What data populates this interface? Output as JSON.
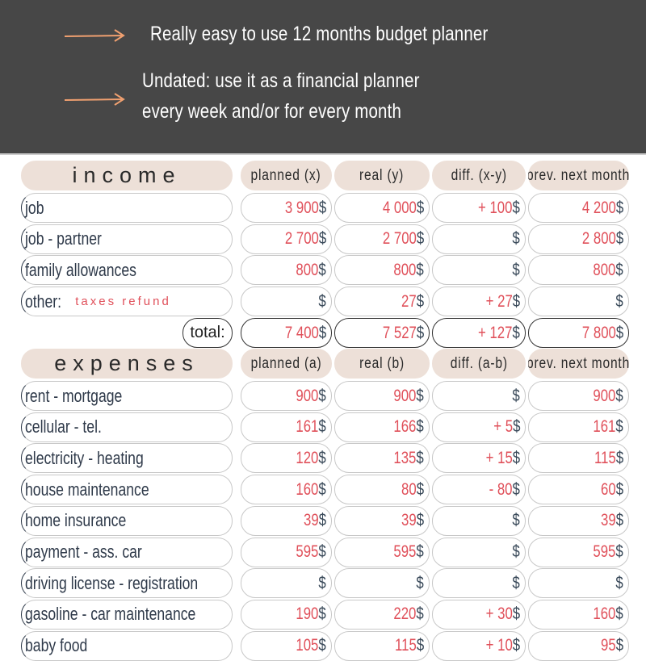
{
  "banner": {
    "line1": "Really easy to use 12 months budget planner",
    "line2a": "Undated: use it as a financial planner",
    "line2b": "every week and/or for every month",
    "arrow_color": "#f0a070",
    "bg_color": "#474747"
  },
  "income": {
    "header": [
      "income",
      "planned (x)",
      "real (y)",
      "diff. (x-y)",
      "prev. next month"
    ],
    "rows": [
      {
        "label": "job",
        "values": [
          "3 900",
          "4 000",
          "+ 100",
          "4 200"
        ]
      },
      {
        "label": "job - partner",
        "values": [
          "2 700",
          "2 700",
          "",
          "2 800"
        ]
      },
      {
        "label": "family allowances",
        "values": [
          "800",
          "800",
          "",
          "800"
        ]
      },
      {
        "label": "other:",
        "note": "taxes refund",
        "values": [
          "",
          "27",
          "+ 27",
          ""
        ]
      }
    ],
    "total": {
      "label": "total:",
      "values": [
        "7 400",
        "7 527",
        "+ 127",
        "7 800"
      ]
    }
  },
  "expenses": {
    "header": [
      "expenses",
      "planned (a)",
      "real (b)",
      "diff. (a-b)",
      "prev. next month"
    ],
    "rows": [
      {
        "label": "rent - mortgage",
        "values": [
          "900",
          "900",
          "",
          "900"
        ]
      },
      {
        "label": "cellular - tel.",
        "values": [
          "161",
          "166",
          "+ 5",
          "161"
        ]
      },
      {
        "label": "electricity - heating",
        "values": [
          "120",
          "135",
          "+ 15",
          "115"
        ]
      },
      {
        "label": "house maintenance",
        "values": [
          "160",
          "80",
          "- 80",
          "60"
        ]
      },
      {
        "label": "home insurance",
        "values": [
          "39",
          "39",
          "",
          "39"
        ]
      },
      {
        "label": "payment - ass. car",
        "values": [
          "595",
          "595",
          "",
          "595"
        ]
      },
      {
        "label": "driving license - registration",
        "values": [
          "",
          "",
          "",
          ""
        ]
      },
      {
        "label": "gasoline - car maintenance",
        "values": [
          "190",
          "220",
          "+ 30",
          "160"
        ]
      },
      {
        "label": "baby food",
        "values": [
          "105",
          "115",
          "+ 10",
          "95"
        ]
      }
    ]
  },
  "currency": "$",
  "colors": {
    "header_bg": "#ede0d8",
    "value_red": "#e0505a",
    "text_navy": "#2f3a4a"
  }
}
